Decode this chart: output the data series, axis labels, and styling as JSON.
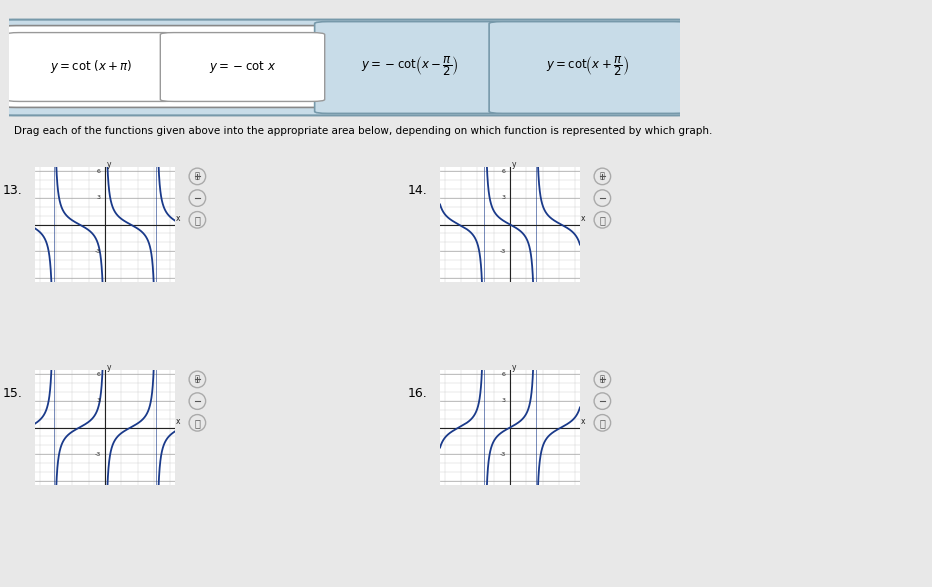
{
  "page_bg": "#e8e8e8",
  "outer_box_bg": "#c8dce8",
  "outer_box_border": "#7799aa",
  "func_box_bg": "#ffffff",
  "func_box_border": "#888888",
  "func_box2_bg": "#c8dce8",
  "func_box2_border": "#7799aa",
  "graph_bg": "#ffffff",
  "drop_zone_color": "#b8d4e0",
  "curve_color": "#1a3a8a",
  "asym_color": "#1a3a8a",
  "grid_color": "#cccccc",
  "axis_color": "#444444",
  "text_color": "#111111",
  "btn_bg": "#ffffff",
  "btn_border": "#aaaaaa",
  "pi": 3.14159265358979,
  "functions_top": [
    {
      "label": "y = cot\\,(x + \\pi)",
      "style": "white"
    },
    {
      "label": "y = -\\cot\\,x",
      "style": "white"
    },
    {
      "label": "y = -\\cot\\!\\left(x - \\dfrac{\\pi}{2}\\right)",
      "style": "blue"
    },
    {
      "label": "y = \\cot\\!\\left(x + \\dfrac{\\pi}{2}\\right)",
      "style": "blue"
    }
  ],
  "graph_labels": [
    "13.",
    "14.",
    "15.",
    "16."
  ],
  "graph_funcs": [
    "cot_x_plus_pi",
    "cot_x_plus_pi2",
    "neg_cot_x",
    "neg_cot_x_minus_pi2"
  ],
  "instruction": "Drag each of the functions given above into the appropriate area below, depending on which function is represented by which graph."
}
